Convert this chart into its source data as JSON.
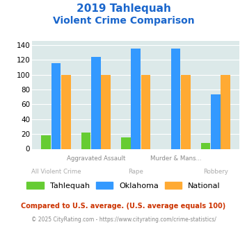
{
  "title_line1": "2019 Tahlequah",
  "title_line2": "Violent Crime Comparison",
  "categories": [
    "All Violent Crime",
    "Aggravated Assault",
    "Rape",
    "Murder & Mans...",
    "Robbery"
  ],
  "tahlequah": [
    18,
    22,
    15,
    0,
    8
  ],
  "oklahoma": [
    115,
    124,
    135,
    135,
    73
  ],
  "national": [
    100,
    100,
    100,
    100,
    100
  ],
  "color_tahlequah": "#66cc33",
  "color_oklahoma": "#3399ff",
  "color_national": "#ffaa33",
  "ylim": [
    0,
    145
  ],
  "yticks": [
    0,
    20,
    40,
    60,
    80,
    100,
    120,
    140
  ],
  "bg_color": "#dce9e9",
  "title_color": "#1a66cc",
  "footnote1": "Compared to U.S. average. (U.S. average equals 100)",
  "footnote2": "© 2025 CityRating.com - https://www.cityrating.com/crime-statistics/",
  "footnote1_color": "#cc3300",
  "footnote2_color": "#888888",
  "legend_labels": [
    "Tahlequah",
    "Oklahoma",
    "National"
  ],
  "xlabel_top": [
    "",
    "Aggravated Assault",
    "",
    "Murder & Mans...",
    ""
  ],
  "xlabel_bot": [
    "All Violent Crime",
    "",
    "Rape",
    "",
    "Robbery"
  ]
}
